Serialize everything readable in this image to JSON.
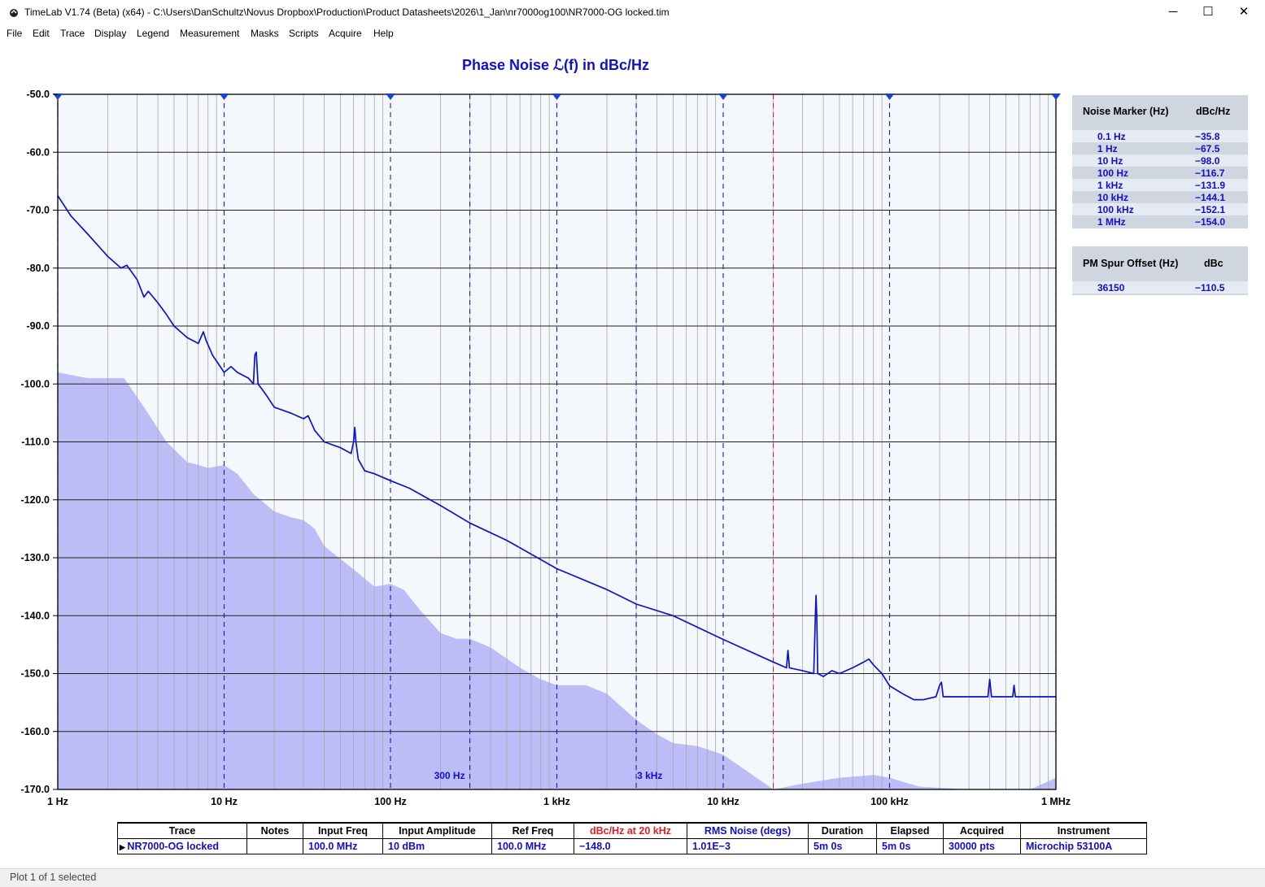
{
  "window": {
    "title": "TimeLab V1.74 (Beta) (x64) - C:\\Users\\DanSchultz\\Novus Dropbox\\Production\\Product Datasheets\\2026\\1_Jan\\nr7000og100\\NR7000-OG locked.tim",
    "minimize": "─",
    "maximize": "☐",
    "close": "✕",
    "icon": "timelab-app-icon"
  },
  "menu": [
    "File",
    "Edit",
    "Trace",
    "Display",
    "Legend",
    "Measurement",
    "Masks",
    "Scripts",
    "Acquire",
    "Help"
  ],
  "colors": {
    "trace": "#0a14c8",
    "mask_fill": "#bcbcf6",
    "plot_bg": "#f4f7fb",
    "red_marker": "#e02020",
    "accent_text": "#1010c8"
  },
  "chart_data": {
    "type": "line",
    "title": "Phase Noise ℒ(f) in dBc/Hz",
    "xscale": "log",
    "xlim": [
      1,
      1000000
    ],
    "ylim": [
      -170,
      -50
    ],
    "yticks": [
      -50,
      -60,
      -70,
      -80,
      -90,
      -100,
      -110,
      -120,
      -130,
      -140,
      -150,
      -160,
      -170
    ],
    "ytick_labels": [
      "-50.0",
      "-60.0",
      "-70.0",
      "-80.0",
      "-90.0",
      "-100.0",
      "-110.0",
      "-120.0",
      "-130.0",
      "-140.0",
      "-150.0",
      "-160.0",
      "-170.0"
    ],
    "xticks": [
      1,
      10,
      100,
      1000,
      10000,
      100000,
      1000000
    ],
    "xtick_labels": [
      "1 Hz",
      "10 Hz",
      "100 Hz",
      "1 kHz",
      "10 kHz",
      "100 kHz",
      "1 MHz"
    ],
    "grid": true,
    "annotations": [
      {
        "x": 300,
        "label": "300 Hz"
      },
      {
        "x": 3000,
        "label": "3 kHz"
      }
    ],
    "red_marker_x": 20000,
    "series": [
      {
        "name": "NR7000-OG locked",
        "x": [
          1,
          1.2,
          1.5,
          2,
          2.4,
          2.6,
          3,
          3.3,
          3.5,
          4,
          4.5,
          5,
          6,
          7,
          7.5,
          7.8,
          8.5,
          10,
          11,
          12,
          14,
          15,
          15.3,
          15.6,
          16,
          17,
          18,
          20,
          25,
          30,
          32,
          35,
          40,
          50,
          58,
          60,
          61,
          62,
          64,
          70,
          80,
          100,
          130,
          200,
          300,
          500,
          1000,
          2000,
          3000,
          5000,
          10000,
          20000,
          24000,
          24500,
          25000,
          30000,
          35000,
          35800,
          36150,
          36500,
          37000,
          40000,
          45000,
          50000,
          60000,
          70000,
          75000,
          80000,
          90000,
          100000,
          120000,
          140000,
          160000,
          190000,
          200000,
          205000,
          210000,
          230000,
          300000,
          390000,
          400000,
          410000,
          500000,
          550000,
          560000,
          570000,
          1000000
        ],
        "y": [
          -67.5,
          -71,
          -74,
          -78,
          -80,
          -79.5,
          -82,
          -85,
          -84,
          -86,
          -88,
          -90,
          -92,
          -93,
          -91,
          -92.5,
          -95,
          -98,
          -97,
          -98,
          -99,
          -100,
          -95,
          -94.5,
          -100,
          -101,
          -102,
          -104,
          -105,
          -106,
          -105.5,
          -108,
          -110,
          -111,
          -112,
          -110,
          -107.5,
          -110,
          -113,
          -115,
          -115.5,
          -116.7,
          -118,
          -121,
          -124,
          -127,
          -131.9,
          -135.5,
          -138,
          -140,
          -144.1,
          -148,
          -149,
          -146,
          -149,
          -149.5,
          -150,
          -140,
          -136.5,
          -140,
          -150,
          -150.5,
          -149.5,
          -150,
          -149,
          -148,
          -147.5,
          -148.5,
          -150,
          -152.1,
          -153.5,
          -154.5,
          -154.5,
          -154,
          -152,
          -151.5,
          -154,
          -154,
          -154,
          -154,
          -151,
          -154,
          -154,
          -154,
          -152,
          -154,
          -154.0
        ]
      }
    ],
    "mask": {
      "x": [
        1,
        1.5,
        2.5,
        3.3,
        4.5,
        6,
        7,
        8,
        10,
        12,
        15,
        20,
        25,
        30,
        35,
        40,
        60,
        80,
        100,
        120,
        150,
        200,
        250,
        300,
        400,
        600,
        800,
        1000,
        1500,
        2000,
        3000,
        4000,
        5000,
        7000,
        10000,
        15000,
        20000,
        30000,
        50000,
        80000,
        100000,
        150000,
        300000,
        700000,
        1000000
      ],
      "y": [
        -98,
        -99,
        -99,
        -104,
        -110,
        -113.5,
        -114,
        -114.5,
        -114,
        -115.5,
        -119,
        -122,
        -123,
        -123.5,
        -125,
        -128,
        -132,
        -135,
        -134.5,
        -135.5,
        -139,
        -143,
        -144,
        -144,
        -145.5,
        -149,
        -151,
        -152,
        -152,
        -153.5,
        -158,
        -160.5,
        -162,
        -162.5,
        -164,
        -167.5,
        -170,
        -169,
        -168,
        -167.5,
        -168,
        -169.5,
        -170,
        -170,
        -168
      ]
    }
  },
  "noise_marker_panel": {
    "header_freq": "Noise Marker (Hz)",
    "header_val": "dBc/Hz",
    "rows": [
      {
        "freq": "0.1 Hz",
        "val": "−35.8"
      },
      {
        "freq": "1 Hz",
        "val": "−67.5"
      },
      {
        "freq": "10 Hz",
        "val": "−98.0"
      },
      {
        "freq": "100 Hz",
        "val": "−116.7"
      },
      {
        "freq": "1 kHz",
        "val": "−131.9"
      },
      {
        "freq": "10 kHz",
        "val": "−144.1"
      },
      {
        "freq": "100 kHz",
        "val": "−152.1"
      },
      {
        "freq": "1 MHz",
        "val": "−154.0"
      }
    ]
  },
  "spur_panel": {
    "header_freq": "PM Spur Offset (Hz)",
    "header_val": "dBc",
    "rows": [
      {
        "freq": "36150",
        "val": "−110.5"
      }
    ]
  },
  "trace_table": {
    "headers": [
      "Trace",
      "Notes",
      "Input Freq",
      "Input Amplitude",
      "Ref Freq",
      "dBc/Hz at 20 kHz",
      "RMS Noise (degs)",
      "Duration",
      "Elapsed",
      "Acquired",
      "Instrument"
    ],
    "row": [
      "NR7000-OG locked",
      "",
      "100.0 MHz",
      "10 dBm",
      "100.0 MHz",
      "−148.0",
      "1.01E−3",
      "5m 0s",
      "5m 0s",
      "30000 pts",
      "Microchip 53100A"
    ]
  },
  "status": "Plot 1 of 1 selected"
}
